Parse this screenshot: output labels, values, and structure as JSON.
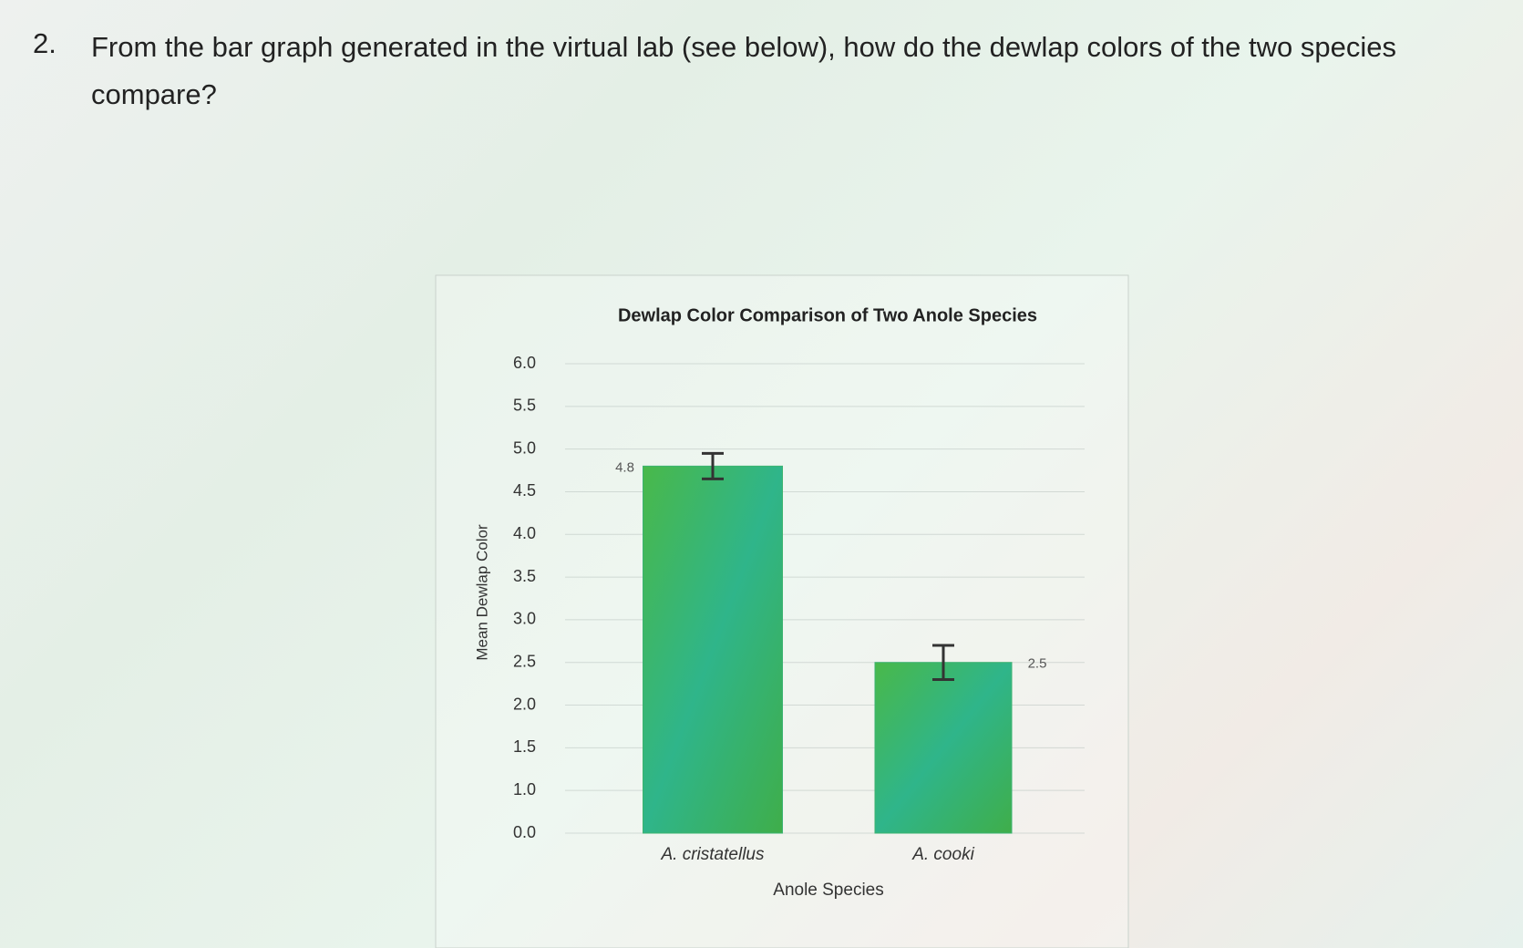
{
  "question": {
    "number": "2.",
    "text": "From the bar graph generated in the virtual lab (see below), how do the dewlap colors of the two species compare?"
  },
  "chart_data": {
    "type": "bar",
    "title": "Dewlap Color Comparison of Two Anole Species",
    "xlabel": "Anole Species",
    "ylabel": "Mean Dewlap Color",
    "categories": [
      "A. cristatellus",
      "A. cooki"
    ],
    "values": [
      4.8,
      2.5
    ],
    "errors": [
      0.15,
      0.2
    ],
    "color": "#3cb371",
    "ylim": [
      0,
      6
    ],
    "yticks": [
      {
        "value": 0,
        "label": "0.0"
      },
      {
        "value": 1,
        "label": "1.0"
      },
      {
        "value": 1.5,
        "label": "1.5"
      },
      {
        "value": 2,
        "label": "2.0"
      },
      {
        "value": 2.5,
        "label": "2.5"
      },
      {
        "value": 3,
        "label": "3.0"
      },
      {
        "value": 3.5,
        "label": "3.5"
      },
      {
        "value": 4,
        "label": "4.0"
      },
      {
        "value": 4.5,
        "label": "4.5"
      },
      {
        "value": 5,
        "label": "5.0"
      },
      {
        "value": 5.5,
        "label": "5.5"
      },
      {
        "value": 6,
        "label": "6.0"
      }
    ],
    "grid": true
  }
}
